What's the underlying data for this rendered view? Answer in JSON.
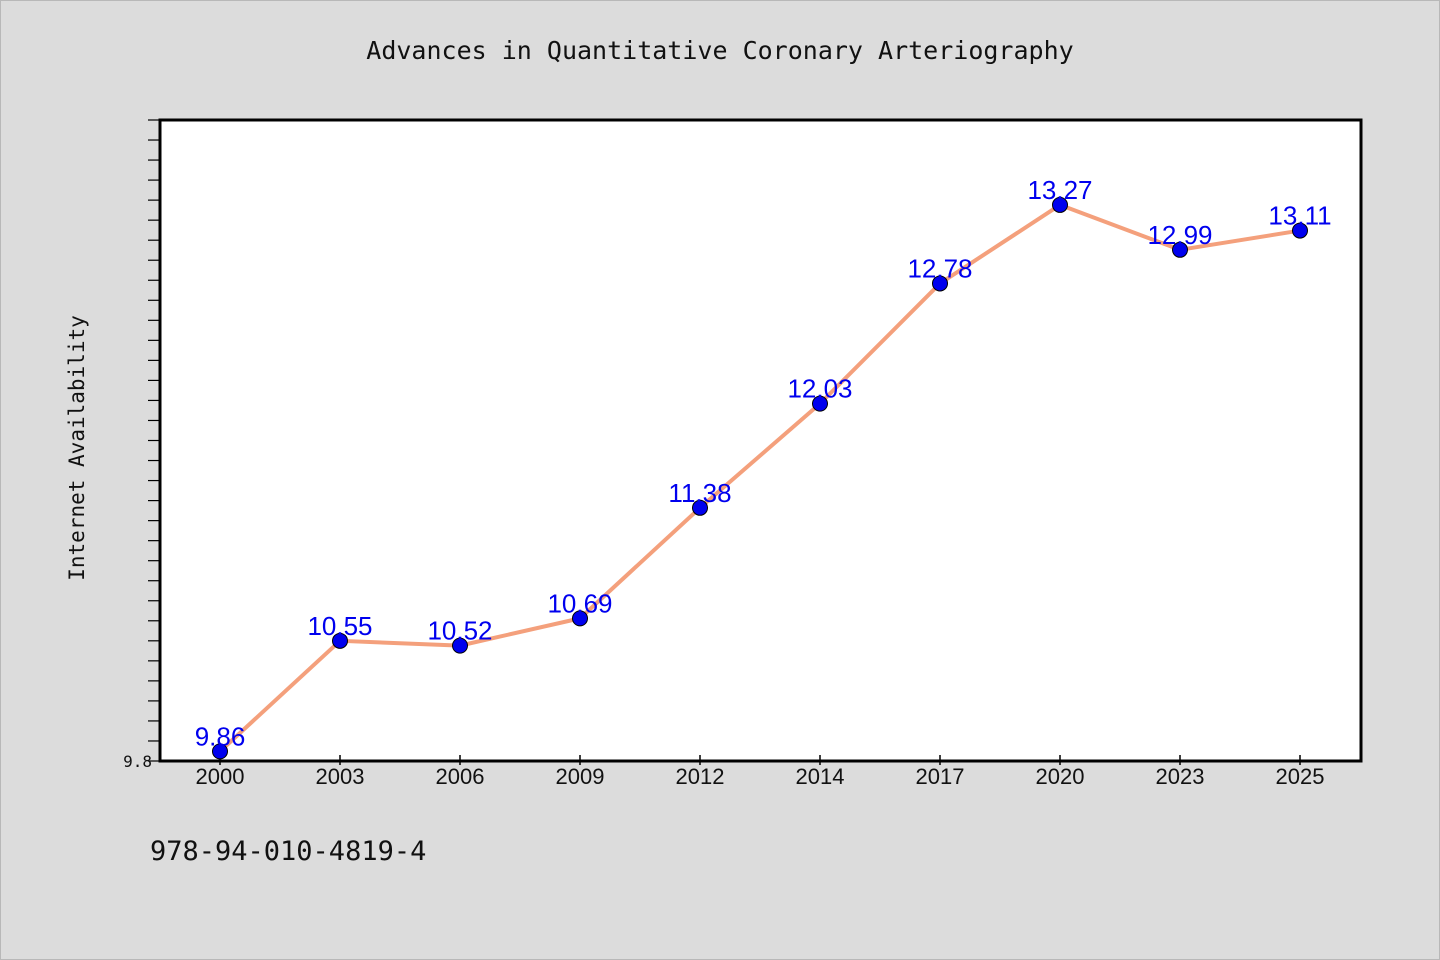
{
  "footer_code": "978-94-010-4819-4",
  "chart_data": {
    "type": "line",
    "title": "Advances in Quantitative Coronary Arteriography",
    "xlabel": "",
    "ylabel": "Internet Availability",
    "categories": [
      "2000",
      "2003",
      "2006",
      "2009",
      "2012",
      "2014",
      "2017",
      "2020",
      "2023",
      "2025"
    ],
    "series": [
      {
        "values": [
          9.86,
          10.55,
          10.52,
          10.69,
          11.38,
          12.03,
          12.78,
          13.27,
          12.99,
          13.11
        ],
        "line_color": "#f4a07c",
        "marker_color": "#0000ee",
        "label_color": "#0000ee"
      }
    ],
    "ylim": [
      9.8,
      13.8
    ],
    "yticks_labeled": [
      "9.8"
    ],
    "grid": false,
    "legend": "none",
    "background": "#dcdcdc",
    "plot_background": "#ffffff"
  }
}
